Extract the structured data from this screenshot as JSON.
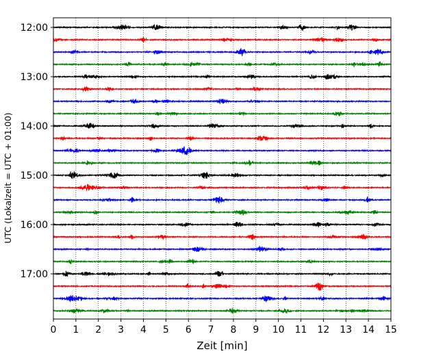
{
  "chart_data": {
    "type": "line",
    "title": "",
    "xlabel": "Zeit  [min]",
    "ylabel": "UTC (Lokalzeit = UTC + 01:00)",
    "xlim": [
      0,
      15
    ],
    "x_ticks": [
      "0",
      "1",
      "2",
      "3",
      "4",
      "5",
      "6",
      "7",
      "8",
      "9",
      "10",
      "11",
      "12",
      "13",
      "14",
      "15"
    ],
    "y_tick_labels": [
      "12:00",
      "13:00",
      "14:00",
      "15:00",
      "16:00",
      "17:00"
    ],
    "start_time": "12:00",
    "end_time": "17:45",
    "row_interval_minutes": 15,
    "grid": "vertical dotted lines at each minute",
    "legend": "none",
    "trace_colors": [
      "#000000",
      "#ff0000",
      "#0000ff",
      "#008000"
    ],
    "rows": [
      {
        "time": "12:00",
        "color": "#000000"
      },
      {
        "time": "12:15",
        "color": "#ff0000"
      },
      {
        "time": "12:30",
        "color": "#0000ff"
      },
      {
        "time": "12:45",
        "color": "#008000"
      },
      {
        "time": "13:00",
        "color": "#000000"
      },
      {
        "time": "13:15",
        "color": "#ff0000"
      },
      {
        "time": "13:30",
        "color": "#0000ff"
      },
      {
        "time": "13:45",
        "color": "#008000"
      },
      {
        "time": "14:00",
        "color": "#000000"
      },
      {
        "time": "14:15",
        "color": "#ff0000"
      },
      {
        "time": "14:30",
        "color": "#0000ff"
      },
      {
        "time": "14:45",
        "color": "#008000"
      },
      {
        "time": "15:00",
        "color": "#000000"
      },
      {
        "time": "15:15",
        "color": "#ff0000"
      },
      {
        "time": "15:30",
        "color": "#0000ff"
      },
      {
        "time": "15:45",
        "color": "#008000"
      },
      {
        "time": "16:00",
        "color": "#000000"
      },
      {
        "time": "16:15",
        "color": "#ff0000"
      },
      {
        "time": "16:30",
        "color": "#0000ff"
      },
      {
        "time": "16:45",
        "color": "#008000"
      },
      {
        "time": "17:00",
        "color": "#000000"
      },
      {
        "time": "17:15",
        "color": "#ff0000"
      },
      {
        "time": "17:30",
        "color": "#0000ff"
      },
      {
        "time": "17:45",
        "color": "#008000"
      }
    ]
  }
}
